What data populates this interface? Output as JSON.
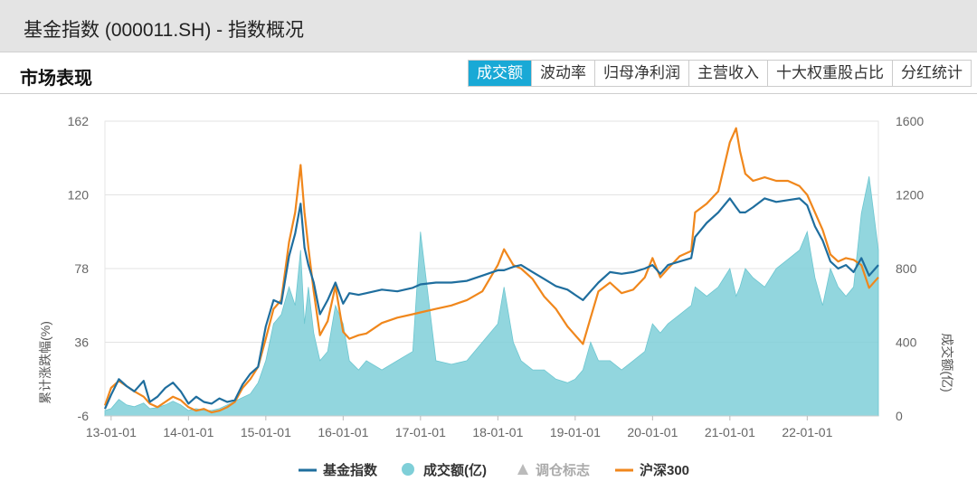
{
  "window": {
    "title": "基金指数 (000011.SH) - 指数概况"
  },
  "section": {
    "title": "市场表现"
  },
  "tabs": [
    {
      "label": "成交额",
      "active": true
    },
    {
      "label": "波动率",
      "active": false
    },
    {
      "label": "归母净利润",
      "active": false
    },
    {
      "label": "主营收入",
      "active": false
    },
    {
      "label": "十大权重股占比",
      "active": false
    },
    {
      "label": "分红统计",
      "active": false
    }
  ],
  "colors": {
    "fund_index": "#1f6e9e",
    "hs300": "#f0871c",
    "volume": "#7fcfd8",
    "active_tab": "#19a9d6"
  },
  "chart_data": {
    "type": "line",
    "y_left": {
      "label": "累计涨跌幅(%)",
      "ticks": [
        "162",
        "120",
        "78",
        "36",
        "-6"
      ],
      "range": [
        -6,
        162
      ]
    },
    "y_right": {
      "label": "成交额(亿)",
      "ticks": [
        "1600",
        "1200",
        "800",
        "400",
        "0"
      ],
      "range": [
        0,
        1600
      ]
    },
    "x_ticks": [
      "13-01-01",
      "14-01-01",
      "15-01-01",
      "16-01-01",
      "17-01-01",
      "18-01-01",
      "19-01-01",
      "20-01-01",
      "21-01-01",
      "22-01-01"
    ],
    "x_range": [
      2012.92,
      2022.92
    ],
    "x": [
      2012.92,
      2013.0,
      2013.1,
      2013.2,
      2013.3,
      2013.42,
      2013.5,
      2013.6,
      2013.7,
      2013.8,
      2013.9,
      2014.0,
      2014.1,
      2014.2,
      2014.3,
      2014.4,
      2014.5,
      2014.6,
      2014.7,
      2014.8,
      2014.9,
      2015.0,
      2015.1,
      2015.2,
      2015.3,
      2015.38,
      2015.45,
      2015.5,
      2015.55,
      2015.62,
      2015.7,
      2015.8,
      2015.9,
      2016.0,
      2016.08,
      2016.2,
      2016.3,
      2016.5,
      2016.7,
      2016.9,
      2017.0,
      2017.2,
      2017.4,
      2017.6,
      2017.8,
      2018.0,
      2018.08,
      2018.2,
      2018.3,
      2018.45,
      2018.6,
      2018.75,
      2018.9,
      2019.0,
      2019.1,
      2019.2,
      2019.3,
      2019.45,
      2019.6,
      2019.75,
      2019.9,
      2020.0,
      2020.1,
      2020.2,
      2020.35,
      2020.5,
      2020.55,
      2020.7,
      2020.85,
      2021.0,
      2021.08,
      2021.13,
      2021.2,
      2021.3,
      2021.45,
      2021.6,
      2021.75,
      2021.9,
      2022.0,
      2022.1,
      2022.2,
      2022.3,
      2022.4,
      2022.5,
      2022.6,
      2022.7,
      2022.8,
      2022.92
    ],
    "series": [
      {
        "name": "基金指数",
        "role": "left",
        "values": [
          -2,
          6,
          15,
          11,
          8,
          14,
          2,
          5,
          10,
          13,
          8,
          1,
          5,
          2,
          1,
          4,
          2,
          3,
          12,
          18,
          22,
          45,
          60,
          58,
          85,
          98,
          115,
          90,
          80,
          70,
          52,
          60,
          70,
          58,
          64,
          63,
          64,
          66,
          65,
          67,
          69,
          70,
          70,
          71,
          74,
          77,
          77,
          79,
          80,
          76,
          72,
          68,
          66,
          63,
          60,
          65,
          70,
          76,
          75,
          76,
          78,
          80,
          75,
          80,
          82,
          84,
          96,
          104,
          110,
          118,
          113,
          110,
          110,
          113,
          118,
          116,
          117,
          118,
          114,
          102,
          94,
          82,
          78,
          80,
          76,
          84,
          74,
          80
        ]
      },
      {
        "name": "沪深300",
        "role": "left",
        "values": [
          0,
          10,
          14,
          11,
          8,
          5,
          1,
          -1,
          2,
          5,
          3,
          -1,
          -3,
          -2,
          -4,
          -3,
          -1,
          2,
          10,
          15,
          22,
          38,
          55,
          60,
          93,
          110,
          137,
          110,
          90,
          65,
          40,
          48,
          68,
          42,
          38,
          40,
          41,
          47,
          50,
          52,
          53,
          55,
          57,
          60,
          65,
          80,
          89,
          80,
          78,
          72,
          62,
          55,
          45,
          40,
          35,
          50,
          65,
          70,
          64,
          66,
          73,
          84,
          73,
          78,
          85,
          88,
          110,
          115,
          122,
          150,
          158,
          145,
          132,
          128,
          130,
          128,
          128,
          125,
          120,
          110,
          100,
          86,
          82,
          84,
          83,
          80,
          67,
          73
        ]
      },
      {
        "name": "成交额(亿)",
        "role": "right",
        "values": [
          30,
          40,
          90,
          60,
          50,
          70,
          40,
          45,
          60,
          80,
          60,
          30,
          40,
          30,
          30,
          40,
          60,
          80,
          100,
          120,
          180,
          300,
          500,
          550,
          700,
          600,
          900,
          500,
          700,
          450,
          300,
          350,
          600,
          500,
          300,
          250,
          300,
          250,
          300,
          350,
          1000,
          300,
          280,
          300,
          400,
          500,
          700,
          400,
          300,
          250,
          250,
          200,
          180,
          200,
          250,
          400,
          300,
          300,
          250,
          300,
          350,
          500,
          450,
          500,
          550,
          600,
          700,
          650,
          700,
          800,
          650,
          700,
          800,
          750,
          700,
          800,
          850,
          900,
          1000,
          750,
          600,
          800,
          700,
          650,
          700,
          1100,
          1300,
          900
        ]
      }
    ],
    "legend": [
      {
        "label": "基金指数",
        "marker": "line"
      },
      {
        "label": "成交额(亿)",
        "marker": "circle"
      },
      {
        "label": "调仓标志",
        "marker": "triangle",
        "disabled": true
      },
      {
        "label": "沪深300",
        "marker": "line"
      }
    ],
    "legend_position": "bottom",
    "grid": true
  }
}
